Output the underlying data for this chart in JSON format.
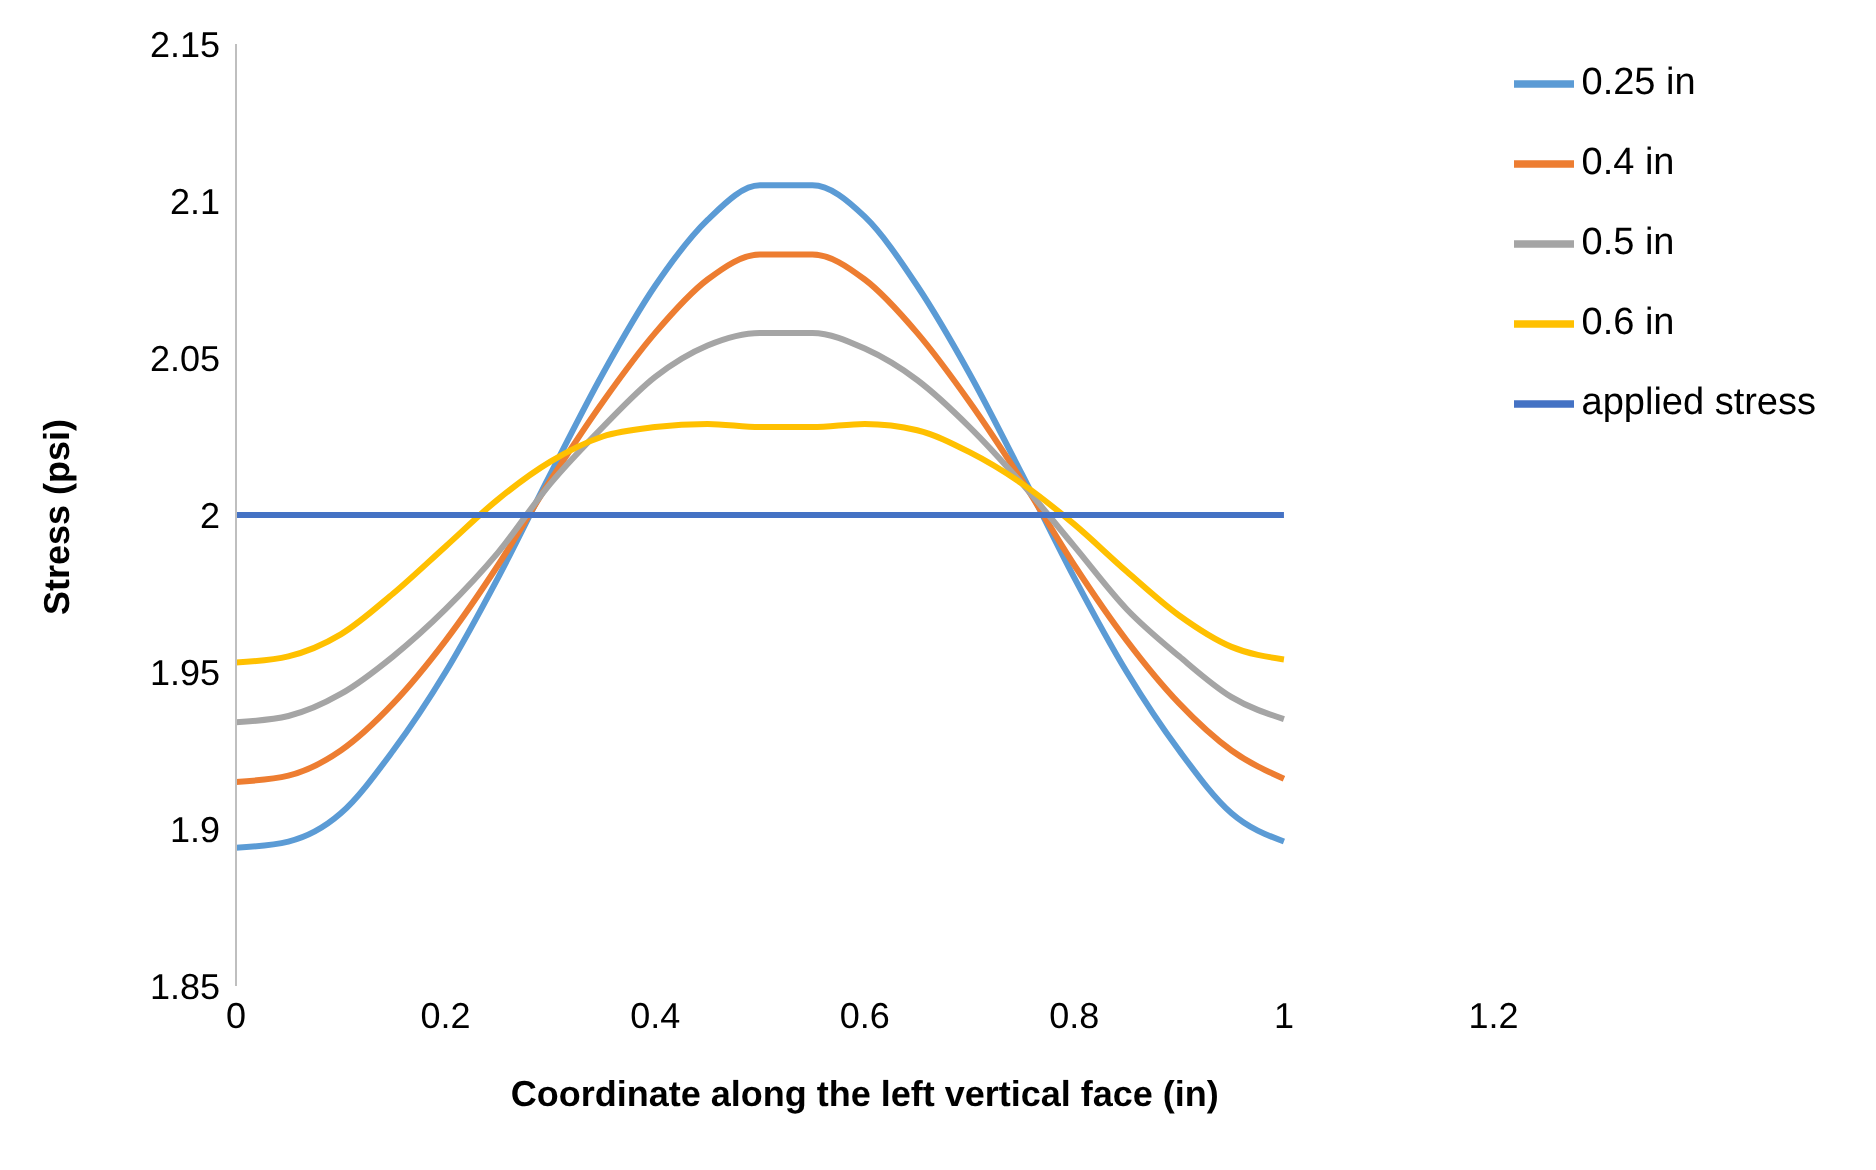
{
  "chart_data": {
    "type": "line",
    "xlabel": "Coordinate along the left vertical face (in)",
    "ylabel": "Stress (psi)",
    "x": [
      0,
      0.05,
      0.1,
      0.15,
      0.2,
      0.25,
      0.3,
      0.35,
      0.4,
      0.45,
      0.5,
      0.55,
      0.6,
      0.65,
      0.7,
      0.75,
      0.8,
      0.85,
      0.9,
      0.95,
      1
    ],
    "series": [
      {
        "name": "0.25 in",
        "color": "#5b9bd5",
        "values": [
          1.894,
          1.896,
          1.905,
          1.925,
          1.95,
          1.98,
          2.013,
          2.045,
          2.073,
          2.094,
          2.105,
          2.105,
          2.095,
          2.073,
          2.045,
          2.013,
          1.98,
          1.95,
          1.925,
          1.905,
          1.896
        ]
      },
      {
        "name": "0.4 in",
        "color": "#ed7d31",
        "values": [
          1.915,
          1.917,
          1.925,
          1.94,
          1.96,
          1.984,
          2.011,
          2.036,
          2.058,
          2.075,
          2.083,
          2.083,
          2.075,
          2.058,
          2.036,
          2.011,
          1.984,
          1.96,
          1.94,
          1.925,
          1.916
        ]
      },
      {
        "name": "0.5 in",
        "color": "#a5a5a5",
        "values": [
          1.934,
          1.936,
          1.943,
          1.955,
          1.97,
          1.988,
          2.01,
          2.028,
          2.044,
          2.054,
          2.058,
          2.058,
          2.053,
          2.043,
          2.028,
          2.01,
          1.99,
          1.97,
          1.955,
          1.942,
          1.935
        ]
      },
      {
        "name": "0.6 in",
        "color": "#ffc000",
        "values": [
          1.953,
          1.955,
          1.962,
          1.975,
          1.99,
          2.005,
          2.017,
          2.025,
          2.028,
          2.029,
          2.028,
          2.028,
          2.029,
          2.027,
          2.02,
          2.01,
          1.997,
          1.982,
          1.968,
          1.958,
          1.954
        ]
      },
      {
        "name": "applied stress",
        "color": "#4472c4",
        "x": [
          0,
          1
        ],
        "values": [
          2,
          2
        ]
      }
    ],
    "xlim": [
      0,
      1.2
    ],
    "xticks": [
      0,
      0.2,
      0.4,
      0.6,
      0.8,
      1,
      1.2
    ],
    "ylim": [
      1.85,
      2.15
    ],
    "yticks": [
      1.85,
      1.9,
      1.95,
      2,
      2.05,
      2.1,
      2.15
    ],
    "legend": "right",
    "marker": "none",
    "line_style": "solid"
  }
}
